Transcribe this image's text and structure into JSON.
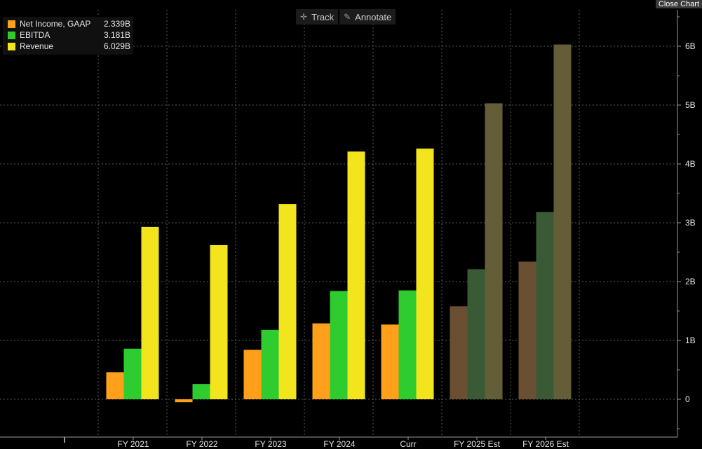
{
  "toolbar": {
    "track_label": "Track",
    "annotate_label": "Annotate",
    "close_label": "Close Chart",
    "track_icon": "crosshair-icon",
    "annotate_icon": "pencil-icon"
  },
  "legend": [
    {
      "name": "Net Income, GAAP",
      "value": "2.339B",
      "color": "#ff9f1a"
    },
    {
      "name": "EBITDA",
      "value": "3.181B",
      "color": "#2ecc2e"
    },
    {
      "name": "Revenue",
      "value": "6.029B",
      "color": "#f2e51e"
    }
  ],
  "chart_data": {
    "type": "bar",
    "categories": [
      "FY 2021",
      "FY 2022",
      "FY 2023",
      "FY 2024",
      "Curr",
      "FY 2025 Est",
      "FY 2026 Est"
    ],
    "estimate_categories": [
      "FY 2025 Est",
      "FY 2026 Est"
    ],
    "series": [
      {
        "name": "Net Income, GAAP",
        "values": [
          0.46,
          -0.05,
          0.84,
          1.29,
          1.27,
          1.58,
          2.339
        ]
      },
      {
        "name": "EBITDA",
        "values": [
          0.86,
          0.26,
          1.18,
          1.84,
          1.85,
          2.21,
          3.181
        ]
      },
      {
        "name": "Revenue",
        "values": [
          2.93,
          2.62,
          3.32,
          4.21,
          4.26,
          5.03,
          6.029
        ]
      }
    ],
    "colors": {
      "actual": [
        "#ff9f1a",
        "#2ecc2e",
        "#f2e51e"
      ],
      "estimate": [
        "#6a4f32",
        "#3a5a36",
        "#635e38"
      ]
    },
    "y_ticks": [
      "0",
      "1B",
      "2B",
      "3B",
      "4B",
      "5B",
      "6B"
    ],
    "y_tick_values": [
      0,
      1,
      2,
      3,
      4,
      5,
      6
    ],
    "ylim": [
      -0.55,
      6.6
    ],
    "y_axis_side": "right",
    "grid": true,
    "legend_position": "top-left"
  }
}
